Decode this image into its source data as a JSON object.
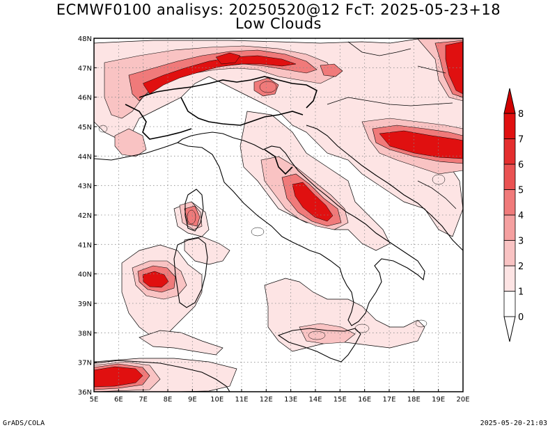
{
  "header": {
    "title_line1": "ECMWF0100 analisys: 20250520@12 FcT: 2025-05-23+18",
    "title_line2": "Low Clouds"
  },
  "footer": {
    "left": "GrADS/COLA",
    "right": "2025-05-20-21:03"
  },
  "map": {
    "lon_range": [
      5,
      20
    ],
    "lat_range": [
      36,
      48
    ],
    "lon_ticks": [
      "5E",
      "6E",
      "7E",
      "8E",
      "9E",
      "10E",
      "11E",
      "12E",
      "13E",
      "14E",
      "15E",
      "16E",
      "17E",
      "18E",
      "19E",
      "20E"
    ],
    "lat_ticks": [
      "36N",
      "37N",
      "38N",
      "39N",
      "40N",
      "41N",
      "42N",
      "43N",
      "44N",
      "45N",
      "46N",
      "47N",
      "48N"
    ],
    "grid": "dotted",
    "colors": {
      "land_outline": "#000000",
      "contour": "#000000",
      "c1": "#fde4e4",
      "c2": "#f9c3c3",
      "c3": "#f5a0a0",
      "c4": "#f07a7a",
      "c5": "#ea5252",
      "c6": "#e42e2e",
      "c7": "#e01010",
      "c8": "#d00000"
    }
  },
  "colorbar": {
    "labels": [
      "0",
      "1",
      "2",
      "3",
      "4",
      "5",
      "6",
      "7",
      "8"
    ],
    "colors": [
      "#ffffff",
      "#fde4e4",
      "#f9c3c3",
      "#f5a0a0",
      "#f07a7a",
      "#ea5252",
      "#e42e2e",
      "#e01010"
    ]
  }
}
